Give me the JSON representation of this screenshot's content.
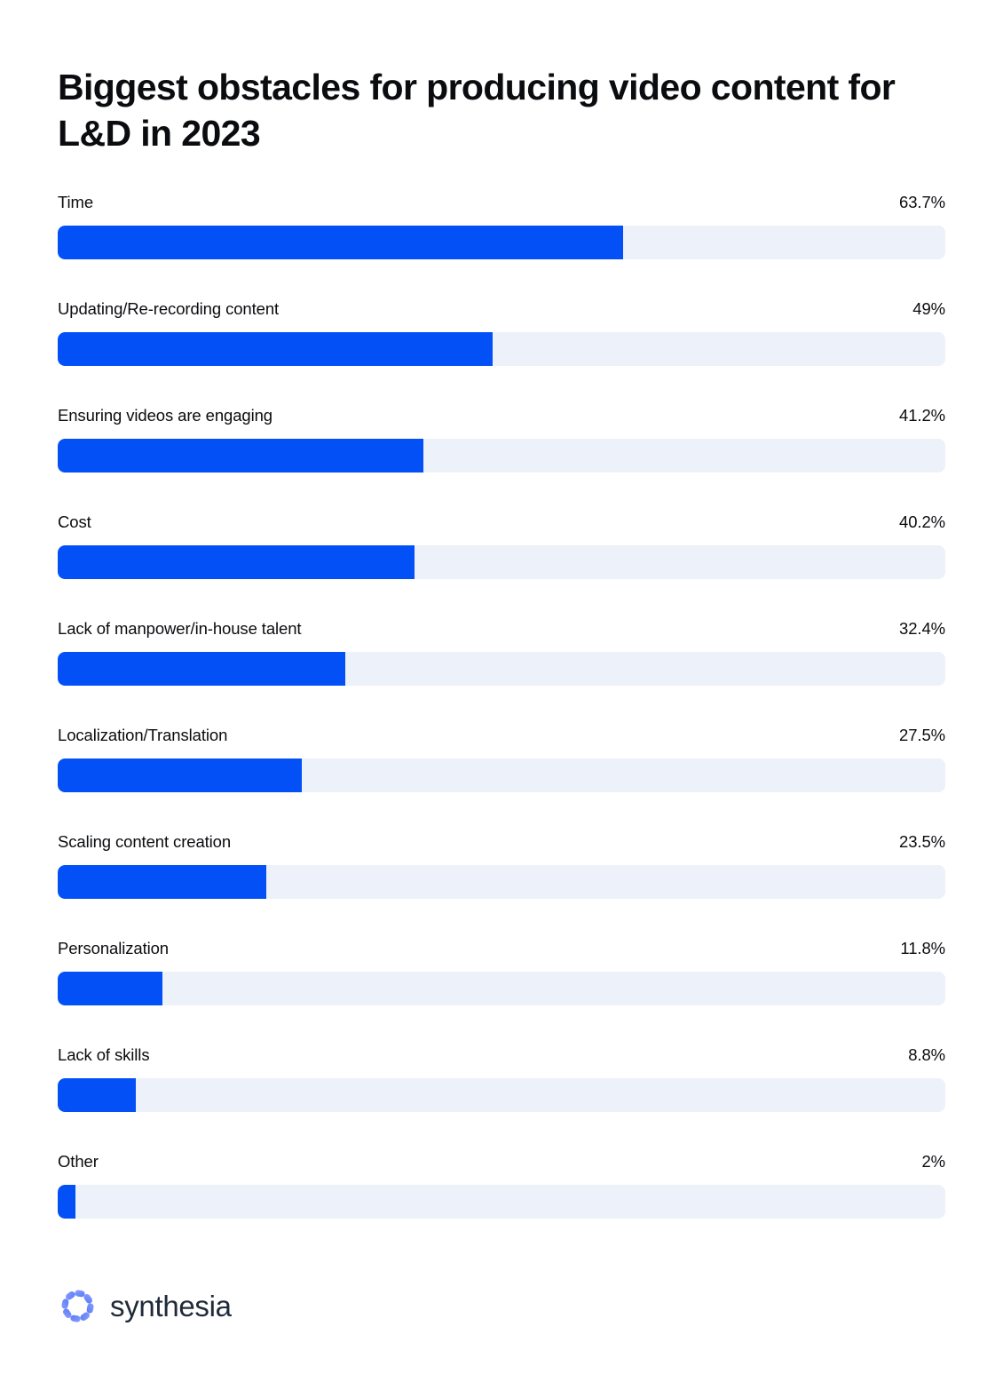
{
  "title": "Biggest obstacles for producing video content for L&D in 2023",
  "chart_data": {
    "type": "bar",
    "orientation": "horizontal",
    "title": "Biggest obstacles for producing video content for L&D in 2023",
    "categories": [
      "Time",
      "Updating/Re-recording content",
      "Ensuring videos are engaging",
      "Cost",
      "Lack of manpower/in-house talent",
      "Localization/Translation",
      "Scaling content creation",
      "Personalization",
      "Lack of skills",
      "Other"
    ],
    "values": [
      63.7,
      49,
      41.2,
      40.2,
      32.4,
      27.5,
      23.5,
      11.8,
      8.8,
      2
    ],
    "value_labels": [
      "63.7%",
      "49%",
      "41.2%",
      "40.2%",
      "32.4%",
      "27.5%",
      "23.5%",
      "11.8%",
      "8.8%",
      "2%"
    ],
    "xlim": [
      0,
      100
    ],
    "grid": false,
    "legend": false,
    "bar_color": "#0450f7",
    "track_color": "#edf1f9",
    "label_color": "#0b0c0f"
  },
  "footer": {
    "brand": "synthesia",
    "logo_icon": "synthesia-mark-icon",
    "brand_color": "#202b3a",
    "logo_gradient_light": "#9fb1fd",
    "logo_gradient_dark": "#1e43f2"
  }
}
